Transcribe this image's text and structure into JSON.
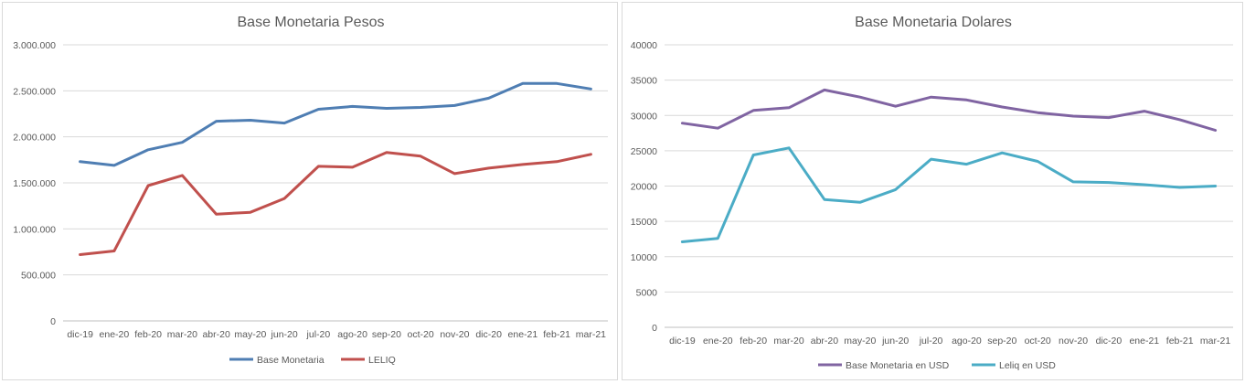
{
  "chart_data": [
    {
      "type": "line",
      "title": "Base Monetaria Pesos",
      "categories": [
        "dic-19",
        "ene-20",
        "feb-20",
        "mar-20",
        "abr-20",
        "may-20",
        "jun-20",
        "jul-20",
        "ago-20",
        "sep-20",
        "oct-20",
        "nov-20",
        "dic-20",
        "ene-21",
        "feb-21",
        "mar-21"
      ],
      "yticks": [
        "0",
        "500.000",
        "1.000.000",
        "1.500.000",
        "2.000.000",
        "2.500.000",
        "3.000.000"
      ],
      "ylim": [
        0,
        3000000
      ],
      "grid": true,
      "legend_position": "bottom",
      "series": [
        {
          "name": "Base Monetaria",
          "color": "#4f7eb3",
          "values": [
            1730000,
            1690000,
            1860000,
            1940000,
            2170000,
            2180000,
            2150000,
            2300000,
            2330000,
            2310000,
            2320000,
            2340000,
            2420000,
            2580000,
            2580000,
            2520000
          ]
        },
        {
          "name": "LELIQ",
          "color": "#c0504d",
          "values": [
            720000,
            760000,
            1470000,
            1580000,
            1160000,
            1180000,
            1330000,
            1680000,
            1670000,
            1830000,
            1790000,
            1600000,
            1660000,
            1700000,
            1730000,
            1810000
          ]
        }
      ]
    },
    {
      "type": "line",
      "title": "Base Monetaria Dolares",
      "categories": [
        "dic-19",
        "ene-20",
        "feb-20",
        "mar-20",
        "abr-20",
        "may-20",
        "jun-20",
        "jul-20",
        "ago-20",
        "sep-20",
        "oct-20",
        "nov-20",
        "dic-20",
        "ene-21",
        "feb-21",
        "mar-21"
      ],
      "yticks": [
        "0",
        "5000",
        "10000",
        "15000",
        "20000",
        "25000",
        "30000",
        "35000",
        "40000"
      ],
      "ylim": [
        0,
        40000
      ],
      "grid": true,
      "legend_position": "bottom",
      "series": [
        {
          "name": "Base Monetaria en USD",
          "color": "#8064a2",
          "values": [
            28900,
            28200,
            30700,
            31100,
            33600,
            32600,
            31300,
            32600,
            32200,
            31200,
            30400,
            29900,
            29700,
            30600,
            29400,
            27900
          ]
        },
        {
          "name": "Leliq en USD",
          "color": "#4bacc6",
          "values": [
            12100,
            12600,
            24400,
            25400,
            18100,
            17700,
            19500,
            23800,
            23100,
            24700,
            23500,
            20600,
            20500,
            20200,
            19800,
            20000
          ]
        }
      ]
    }
  ]
}
